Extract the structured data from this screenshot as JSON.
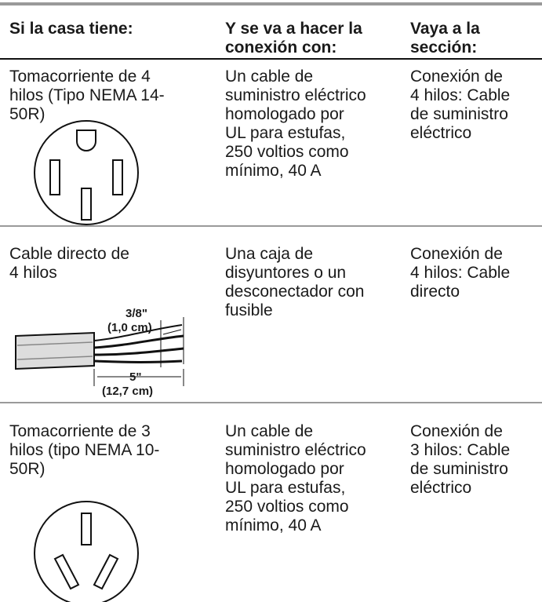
{
  "table": {
    "header": [
      [
        "Si la casa tiene:"
      ],
      [
        "Y se va a hacer la",
        "conexión con:"
      ],
      [
        "Vaya a la",
        "sección:"
      ]
    ],
    "rows": [
      {
        "cells": [
          [
            "Tomacorriente de 4",
            "hilos (Tipo NEMA 14-",
            "50R)"
          ],
          [
            "Un cable de",
            "suministro eléctrico",
            "homologado por",
            "UL para estufas,",
            "250 voltios como",
            "mínimo, 40 A"
          ],
          [
            "Conexión de",
            "4 hilos: Cable",
            "de suministro",
            "eléctrico"
          ]
        ]
      },
      {
        "cells": [
          [
            "Cable directo de",
            "4 hilos"
          ],
          [
            "Una caja de",
            "disyuntores o un",
            "desconectador con",
            "fusible"
          ],
          [
            "Conexión de",
            "4 hilos: Cable",
            "directo"
          ]
        ]
      },
      {
        "cells": [
          [
            "Tomacorriente de 3",
            "hilos (tipo NEMA 10-",
            "50R)"
          ],
          [
            "Un cable de",
            "suministro eléctrico",
            "homologado por",
            "UL para estufas,",
            "250 voltios como",
            "mínimo, 40 A"
          ],
          [
            "Conexión de",
            "3 hilos: Cable",
            "de suministro",
            "eléctrico"
          ]
        ]
      }
    ]
  },
  "cable_diagram": {
    "strip_length": "3/8\"",
    "strip_length_metric": "(1,0 cm)",
    "jacket_length": "5\"",
    "jacket_length_metric": "(12,7 cm)"
  }
}
